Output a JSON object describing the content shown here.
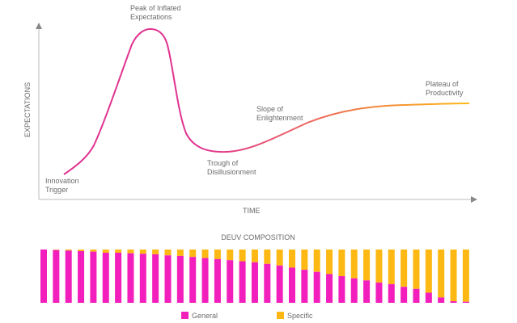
{
  "colors": {
    "general": "#f21fbd",
    "specific": "#fdb813",
    "curve_start": "#e0328f",
    "curve_end": "#fdb813",
    "axis": "#bbbbbb"
  },
  "hype_cycle": {
    "type": "line",
    "ylabel": "EXPECTATIONS",
    "xlabel": "TIME",
    "phases": [
      {
        "lines": [
          "Innovation",
          "Trigger"
        ]
      },
      {
        "lines": [
          "Peak of Inflated",
          "Expectations"
        ]
      },
      {
        "lines": [
          "Trough of",
          "Disillusionment"
        ]
      },
      {
        "lines": [
          "Slope of",
          "Enlightenment"
        ]
      },
      {
        "lines": [
          "Plateau of",
          "Productivity"
        ]
      }
    ]
  },
  "chart_data": {
    "type": "bar",
    "stacked": true,
    "title": "DEUV COMPOSITION",
    "legend_position": "bottom",
    "series": [
      {
        "name": "General",
        "values": [
          1.0,
          0.99,
          0.98,
          0.97,
          0.96,
          0.94,
          0.94,
          0.93,
          0.92,
          0.91,
          0.89,
          0.88,
          0.86,
          0.84,
          0.82,
          0.8,
          0.78,
          0.76,
          0.73,
          0.7,
          0.66,
          0.62,
          0.58,
          0.54,
          0.5,
          0.46,
          0.42,
          0.38,
          0.35,
          0.3,
          0.26,
          0.19,
          0.1,
          0.03,
          0.02
        ]
      },
      {
        "name": "Specific",
        "values": [
          0.0,
          0.01,
          0.02,
          0.03,
          0.04,
          0.06,
          0.06,
          0.07,
          0.08,
          0.09,
          0.11,
          0.12,
          0.14,
          0.16,
          0.18,
          0.2,
          0.22,
          0.24,
          0.27,
          0.3,
          0.34,
          0.38,
          0.42,
          0.46,
          0.5,
          0.54,
          0.58,
          0.62,
          0.65,
          0.7,
          0.74,
          0.81,
          0.9,
          0.97,
          0.98
        ]
      }
    ],
    "ylim": [
      0,
      1
    ]
  }
}
